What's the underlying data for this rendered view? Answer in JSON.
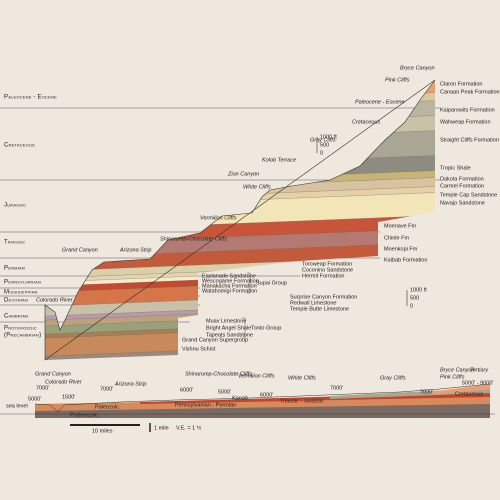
{
  "era_labels": [
    "Paleocene - Eocene",
    "Cretaceous",
    "Jurassic",
    "Triassic",
    "Permian",
    "Pennsylvanian",
    "Mississippian",
    "Devonian",
    "Cambrian",
    "Proterozoic",
    "(Precambrian)"
  ],
  "landmarks": [
    "Bryce Canyon",
    "Pink Cliffs",
    "Paleocene - Eocene",
    "Cretaceous",
    "Gray Cliffs",
    "Kolob Terrace",
    "Zion Canyon",
    "White Cliffs",
    "Vermilion Cliffs",
    "Shinarump-Chocolate Cliffs",
    "Arizona Strip",
    "Grand Canyon",
    "Colorado River"
  ],
  "formations": [
    "Claron Formation",
    "Canaan Peak Formation",
    "Kaiparowits Formation",
    "Wahweap Formation",
    "Straight Cliffs Formation",
    "Tropic Shale",
    "Dakota Formation",
    "Carmel Formation",
    "Temple Cap Sandstone",
    "Navajo Sandstone",
    "Moenave Fm",
    "Chinle Fm",
    "Moenkopi Fm",
    "Kaibab Formation",
    "Toroweap Formation",
    "Coconino Sandstone",
    "Hermit Formation",
    "Esplanade Sandstone",
    "Wescogame Formation",
    "Manakacha Formation",
    "Watahomigi Formation",
    "Surprise Canyon Formation",
    "Redwall Limestone",
    "Temple Butte Limestone",
    "Muav Limestone",
    "Bright Angel Shale",
    "Tapeats Sandstone",
    "Grand Canyon Supergroup",
    "Vishnu Schist"
  ],
  "groups": [
    "Supai Group",
    "Tonto Group"
  ],
  "scales": [
    [
      "1000 ft",
      "500",
      "0"
    ],
    [
      "1000 ft",
      "500",
      "0"
    ]
  ],
  "profile": {
    "landmarks": [
      "Grand Canyon",
      "Colorado River",
      "Arizona Strip",
      "Shinarump-Chocolate Cliffs",
      "Vermilion Cliffs",
      "Kanab",
      "White Cliffs",
      "Gray Cliffs",
      "Bryce Canyon",
      "Pink Cliffs",
      "Tertiary"
    ],
    "elevations": [
      "7000'",
      "1500'",
      "5000'",
      "7000'",
      "6000'",
      "5000'",
      "6000'",
      "7000'",
      "7000'",
      "5000' - 9000'"
    ],
    "sea_level": "sea level",
    "units": [
      "Proterozoic",
      "Paleozoic",
      "Pennsylvanian - Permian",
      "Triassic - Jurassic",
      "Cretaceous"
    ],
    "scale": {
      "miles": "10 miles",
      "mile": "1 mile",
      "ve": "V.E. = 1 ½"
    }
  }
}
